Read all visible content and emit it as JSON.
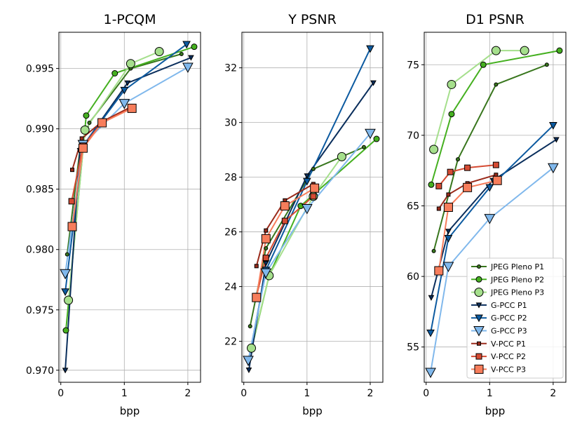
{
  "figure": {
    "width": 830,
    "height": 623
  },
  "styles": {
    "JPEG Pleno P1": {
      "color": "#38761d",
      "marker": "circle",
      "size": 5
    },
    "JPEG Pleno P2": {
      "color": "#45b020",
      "marker": "circle",
      "size": 8
    },
    "JPEG Pleno P3": {
      "color": "#a5df8c",
      "marker": "circle",
      "size": 12
    },
    "G-PCC P1": {
      "color": "#0a2e5c",
      "marker": "triangle-down",
      "size": 7
    },
    "G-PCC P2": {
      "color": "#0c5aa0",
      "marker": "triangle-down",
      "size": 10
    },
    "G-PCC P3": {
      "color": "#80b8ec",
      "marker": "triangle-down",
      "size": 14
    },
    "V-PCC P1": {
      "color": "#9a2b1b",
      "marker": "square",
      "size": 5
    },
    "V-PCC P2": {
      "color": "#d54b33",
      "marker": "square",
      "size": 8
    },
    "V-PCC P3": {
      "color": "#f77d5b",
      "marker": "square",
      "size": 12
    }
  },
  "chart_data": [
    {
      "type": "line",
      "title": "1-PCQM",
      "xlabel": "bpp",
      "ylabel": "",
      "xlim": [
        -0.03,
        2.2
      ],
      "ylim": [
        0.969,
        0.998
      ],
      "xticks": [
        0,
        1,
        2
      ],
      "xticklabels": [
        "0",
        "1",
        "2"
      ],
      "yticks": [
        0.97,
        0.975,
        0.98,
        0.985,
        0.99,
        0.995
      ],
      "yticklabels": [
        "0.970",
        "0.975",
        "0.980",
        "0.985",
        "0.990",
        "0.995"
      ],
      "grid": true,
      "series": [
        {
          "name": "JPEG Pleno P1",
          "x": [
            0.1,
            0.3,
            0.45,
            1.1,
            1.9
          ],
          "y": [
            0.9796,
            0.9882,
            0.9905,
            0.995,
            0.9962
          ]
        },
        {
          "name": "JPEG Pleno P2",
          "x": [
            0.08,
            0.4,
            0.85,
            2.1
          ],
          "y": [
            0.9733,
            0.9911,
            0.9946,
            0.9968
          ]
        },
        {
          "name": "JPEG Pleno P3",
          "x": [
            0.12,
            0.38,
            1.1,
            1.55
          ],
          "y": [
            0.9758,
            0.9899,
            0.9954,
            0.9964
          ]
        },
        {
          "name": "G-PCC P1",
          "x": [
            0.07,
            0.3,
            1.05,
            2.05
          ],
          "y": [
            0.97,
            0.9882,
            0.9938,
            0.9959
          ]
        },
        {
          "name": "G-PCC P2",
          "x": [
            0.07,
            0.35,
            1.0,
            1.98
          ],
          "y": [
            0.9765,
            0.9886,
            0.9932,
            0.997
          ]
        },
        {
          "name": "G-PCC P3",
          "x": [
            0.07,
            0.35,
            1.0,
            2.0
          ],
          "y": [
            0.978,
            0.9887,
            0.9921,
            0.9951
          ]
        },
        {
          "name": "V-PCC P1",
          "x": [
            0.18,
            0.33,
            0.65,
            1.1
          ],
          "y": [
            0.9866,
            0.9892,
            0.9906,
            0.9918
          ]
        },
        {
          "name": "V-PCC P2",
          "x": [
            0.17,
            0.35,
            0.65,
            1.1
          ],
          "y": [
            0.984,
            0.9886,
            0.9905,
            0.9917
          ]
        },
        {
          "name": "V-PCC P3",
          "x": [
            0.18,
            0.35,
            0.65,
            1.12
          ],
          "y": [
            0.9819,
            0.9884,
            0.9905,
            0.9917
          ]
        }
      ]
    },
    {
      "type": "line",
      "title": "Y PSNR",
      "xlabel": "bpp",
      "ylabel": "",
      "xlim": [
        -0.03,
        2.2
      ],
      "ylim": [
        20.5,
        33.3
      ],
      "xticks": [
        0,
        1,
        2
      ],
      "xticklabels": [
        "0",
        "1",
        "2"
      ],
      "yticks": [
        22,
        24,
        26,
        28,
        30,
        32
      ],
      "yticklabels": [
        "22",
        "24",
        "26",
        "28",
        "30",
        "32"
      ],
      "grid": true,
      "series": [
        {
          "name": "JPEG Pleno P1",
          "x": [
            0.1,
            0.35,
            1.1,
            1.9
          ],
          "y": [
            22.55,
            25.4,
            28.3,
            29.1
          ]
        },
        {
          "name": "JPEG Pleno P2",
          "x": [
            0.12,
            0.4,
            0.9,
            2.1
          ],
          "y": [
            21.7,
            24.4,
            26.95,
            29.4
          ]
        },
        {
          "name": "JPEG Pleno P3",
          "x": [
            0.12,
            0.4,
            1.1,
            1.55
          ],
          "y": [
            21.75,
            24.4,
            27.3,
            28.75
          ]
        },
        {
          "name": "G-PCC P1",
          "x": [
            0.08,
            0.35,
            1.0,
            2.05
          ],
          "y": [
            20.95,
            24.85,
            28.05,
            31.45
          ]
        },
        {
          "name": "G-PCC P2",
          "x": [
            0.07,
            0.35,
            1.0,
            2.0
          ],
          "y": [
            21.25,
            24.6,
            27.85,
            32.7
          ]
        },
        {
          "name": "G-PCC P3",
          "x": [
            0.07,
            0.35,
            1.0,
            2.0
          ],
          "y": [
            21.3,
            24.5,
            26.85,
            29.6
          ]
        },
        {
          "name": "V-PCC P1",
          "x": [
            0.2,
            0.35,
            0.65,
            1.1
          ],
          "y": [
            24.75,
            26.05,
            27.15,
            27.75
          ]
        },
        {
          "name": "V-PCC P2",
          "x": [
            0.2,
            0.35,
            0.65,
            1.1
          ],
          "y": [
            23.65,
            25.05,
            26.4,
            27.3
          ]
        },
        {
          "name": "V-PCC P3",
          "x": [
            0.2,
            0.35,
            0.65,
            1.12
          ],
          "y": [
            23.6,
            25.75,
            26.95,
            27.6
          ]
        }
      ]
    },
    {
      "type": "line",
      "title": "D1 PSNR",
      "xlabel": "bpp",
      "ylabel": "",
      "xlim": [
        -0.03,
        2.2
      ],
      "ylim": [
        52.5,
        77.3
      ],
      "xticks": [
        0,
        1,
        2
      ],
      "xticklabels": [
        "0",
        "1",
        "2"
      ],
      "yticks": [
        55,
        60,
        65,
        70,
        75
      ],
      "yticklabels": [
        "55",
        "60",
        "65",
        "70",
        "75"
      ],
      "grid": true,
      "legend": "lower-right",
      "series": [
        {
          "name": "JPEG Pleno P1",
          "x": [
            0.12,
            0.5,
            1.1,
            1.9
          ],
          "y": [
            61.8,
            68.3,
            73.6,
            75.0
          ]
        },
        {
          "name": "JPEG Pleno P2",
          "x": [
            0.08,
            0.4,
            0.9,
            2.1
          ],
          "y": [
            66.5,
            71.5,
            75.0,
            76.0
          ]
        },
        {
          "name": "JPEG Pleno P3",
          "x": [
            0.12,
            0.4,
            1.1,
            1.55
          ],
          "y": [
            69.0,
            73.6,
            76.0,
            76.0
          ]
        },
        {
          "name": "G-PCC P1",
          "x": [
            0.08,
            0.35,
            1.05,
            2.05
          ],
          "y": [
            58.5,
            63.2,
            66.8,
            69.7
          ]
        },
        {
          "name": "G-PCC P2",
          "x": [
            0.07,
            0.35,
            1.0,
            2.0
          ],
          "y": [
            56.0,
            62.7,
            66.3,
            70.7
          ]
        },
        {
          "name": "G-PCC P3",
          "x": [
            0.07,
            0.35,
            1.0,
            2.0
          ],
          "y": [
            53.2,
            60.7,
            64.1,
            67.7
          ]
        },
        {
          "name": "V-PCC P1",
          "x": [
            0.2,
            0.35,
            0.65,
            1.1
          ],
          "y": [
            64.8,
            65.8,
            66.6,
            67.2
          ]
        },
        {
          "name": "V-PCC P2",
          "x": [
            0.2,
            0.38,
            0.65,
            1.1
          ],
          "y": [
            66.4,
            67.4,
            67.7,
            67.9
          ]
        },
        {
          "name": "V-PCC P3",
          "x": [
            0.2,
            0.35,
            0.65,
            1.12
          ],
          "y": [
            60.4,
            64.9,
            66.3,
            66.8
          ]
        }
      ]
    }
  ]
}
